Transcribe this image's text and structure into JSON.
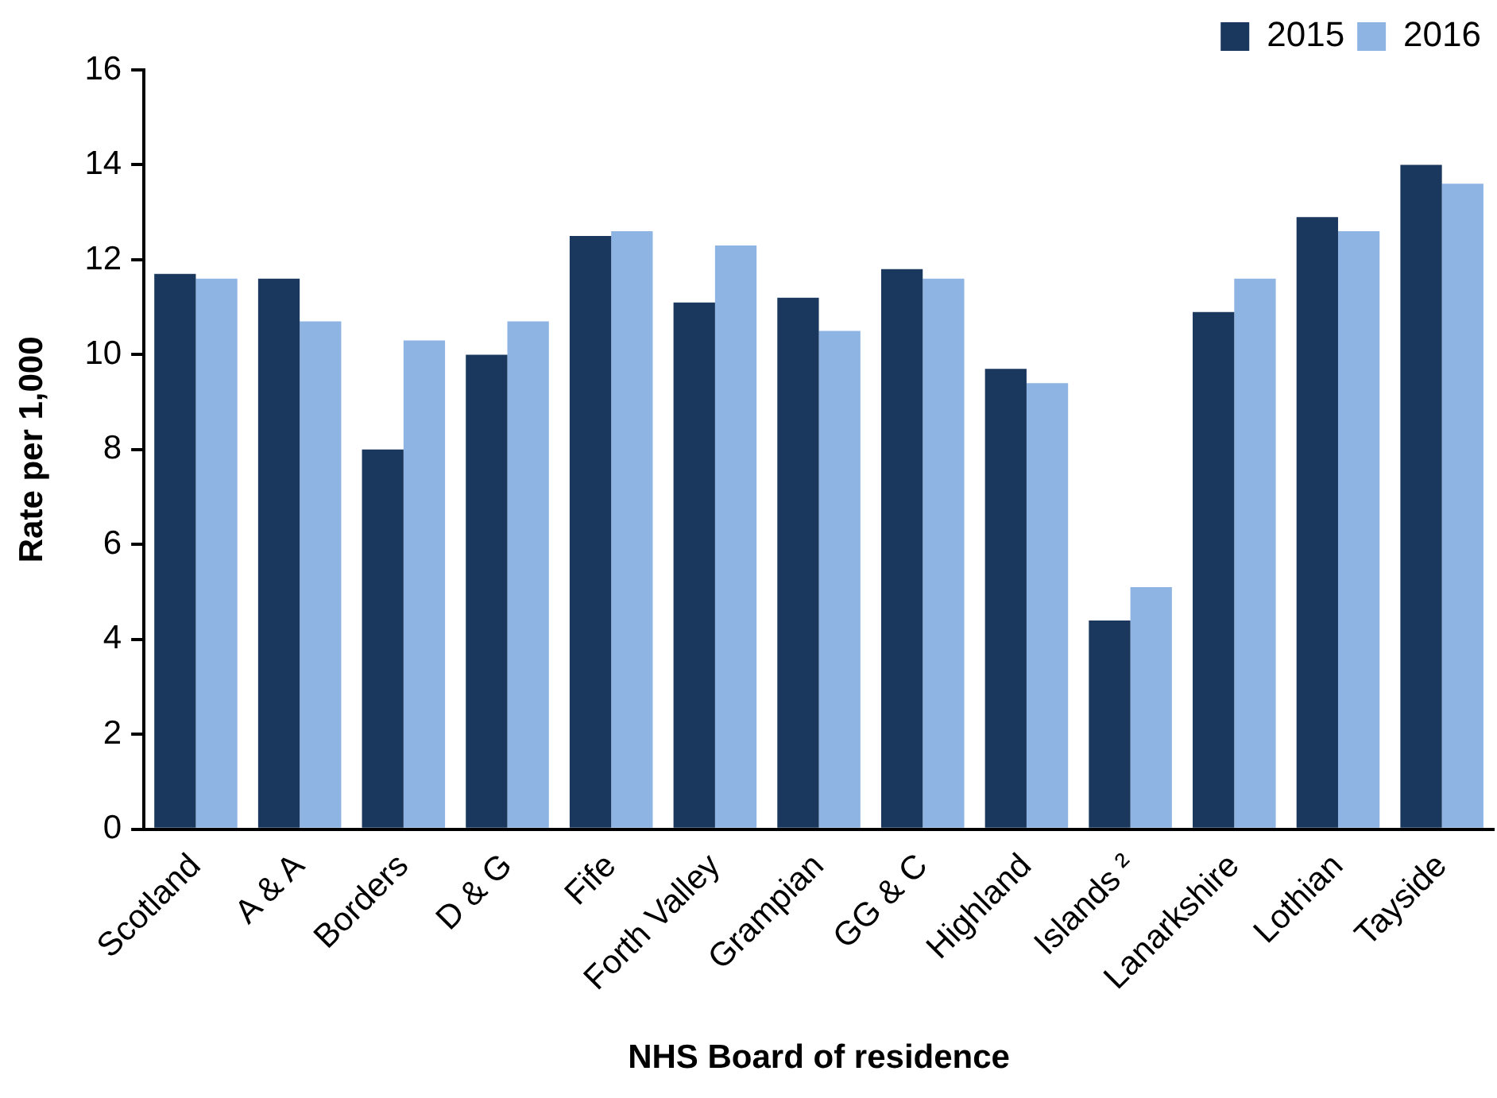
{
  "chart_data": {
    "type": "bar",
    "xlabel": "NHS Board of residence",
    "ylabel": "Rate per 1,000",
    "categories": [
      "Scotland",
      "A & A",
      "Borders",
      "D & G",
      "Fife",
      "Forth Valley",
      "Grampian",
      "GG & C",
      "Highland",
      "Islands ²",
      "Lanarkshire",
      "Lothian",
      "Tayside"
    ],
    "series": [
      {
        "name": "2015",
        "color": "#1a375e",
        "values": [
          11.7,
          11.6,
          8.0,
          10.0,
          12.5,
          11.1,
          11.2,
          11.8,
          9.7,
          4.4,
          10.9,
          12.9,
          14.0
        ]
      },
      {
        "name": "2016",
        "color": "#8eb4e3",
        "values": [
          11.6,
          10.7,
          10.3,
          10.7,
          12.6,
          12.3,
          10.5,
          11.6,
          9.4,
          5.1,
          11.6,
          12.6,
          13.6
        ]
      }
    ],
    "ylim": [
      0,
      16
    ],
    "yticks": [
      0,
      2,
      4,
      6,
      8,
      10,
      12,
      14,
      16
    ],
    "grid": false,
    "legend": "top right"
  }
}
